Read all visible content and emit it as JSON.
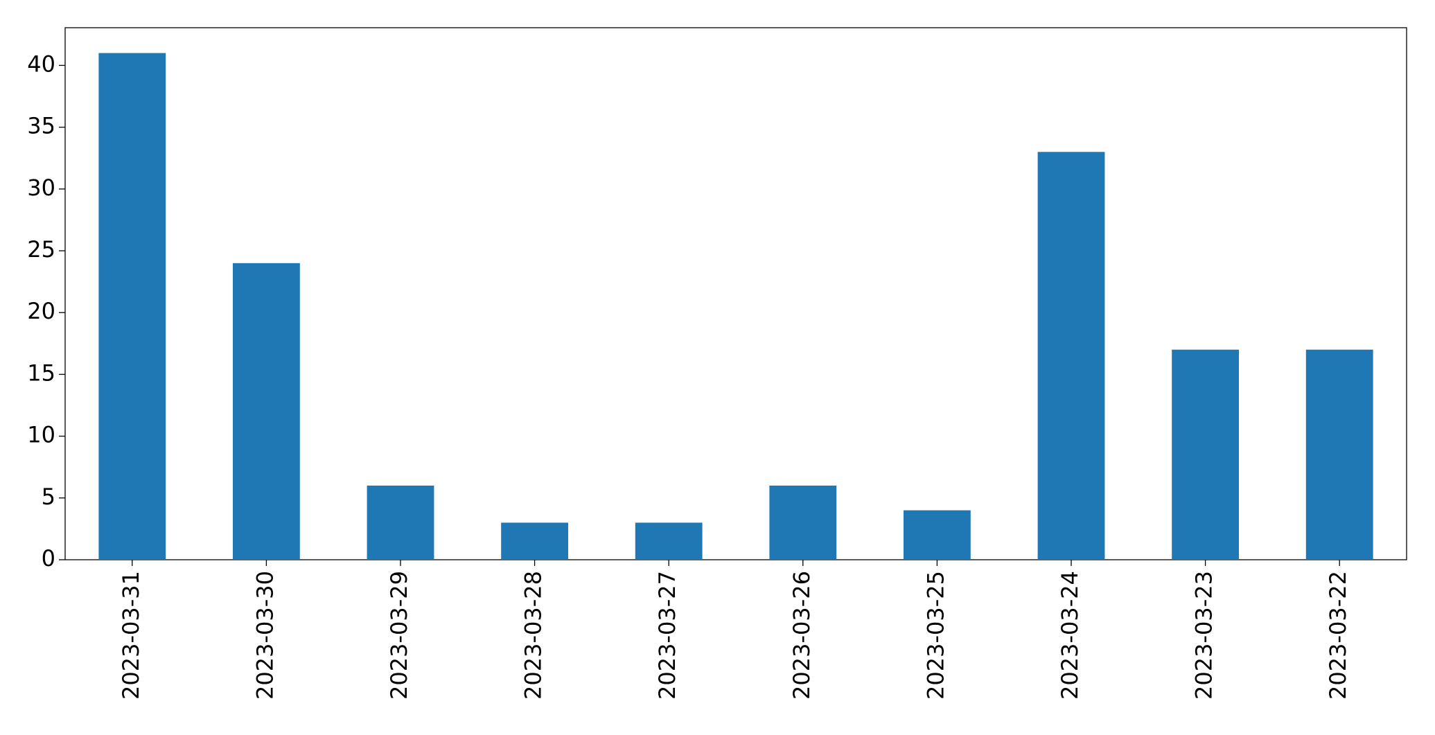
{
  "chart_data": {
    "type": "bar",
    "categories": [
      "2023-03-31",
      "2023-03-30",
      "2023-03-29",
      "2023-03-28",
      "2023-03-27",
      "2023-03-26",
      "2023-03-25",
      "2023-03-24",
      "2023-03-23",
      "2023-03-22"
    ],
    "values": [
      41,
      24,
      6,
      3,
      3,
      6,
      4,
      33,
      17,
      17
    ],
    "color": "#1f77b4",
    "ylim": [
      0,
      43.05
    ],
    "yticks": [
      0,
      5,
      10,
      15,
      20,
      25,
      30,
      35,
      40
    ],
    "grid": false
  }
}
